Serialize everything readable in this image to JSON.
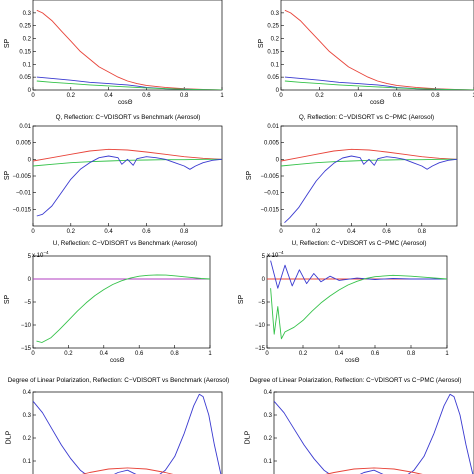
{
  "colors": {
    "red": "#e8443a",
    "green": "#35c24a",
    "blue": "#3a3ad0",
    "purple": "#b03cc0"
  },
  "chart_data": [
    {
      "type": "line",
      "title": "",
      "xlabel": "cosΘ",
      "ylabel": "SP",
      "xlim": [
        0,
        1
      ],
      "ylim": [
        0,
        0.35
      ],
      "xticks": [
        "0",
        "0.2",
        "0.4",
        "0.6",
        "0.8",
        "1"
      ],
      "yticks": [
        "0",
        "0.05",
        "0.1",
        "0.15",
        "0.2",
        "0.25",
        "0.3"
      ],
      "series": [
        {
          "color": "red",
          "x": [
            0.02,
            0.05,
            0.1,
            0.15,
            0.2,
            0.25,
            0.3,
            0.35,
            0.4,
            0.45,
            0.5,
            0.55,
            0.6,
            0.7,
            0.8,
            0.9,
            1.0
          ],
          "y": [
            0.31,
            0.3,
            0.27,
            0.23,
            0.19,
            0.15,
            0.12,
            0.09,
            0.07,
            0.05,
            0.035,
            0.025,
            0.018,
            0.01,
            0.005,
            0.002,
            0.0
          ]
        },
        {
          "color": "blue",
          "x": [
            0.02,
            0.1,
            0.2,
            0.3,
            0.4,
            0.45,
            0.5,
            0.55,
            0.6,
            0.7,
            0.8,
            0.9,
            1.0
          ],
          "y": [
            0.05,
            0.045,
            0.038,
            0.03,
            0.025,
            0.022,
            0.02,
            0.015,
            0.01,
            0.005,
            0.003,
            0.001,
            0.0
          ]
        },
        {
          "color": "green",
          "x": [
            0.02,
            0.1,
            0.2,
            0.3,
            0.4,
            0.5,
            0.6,
            0.7,
            0.8,
            0.9,
            1.0
          ],
          "y": [
            0.035,
            0.03,
            0.025,
            0.02,
            0.016,
            0.012,
            0.008,
            0.005,
            0.003,
            0.001,
            0.0
          ]
        }
      ]
    },
    {
      "type": "line",
      "title": "",
      "xlabel": "cosΘ",
      "ylabel": "SP",
      "xlim": [
        0,
        1
      ],
      "ylim": [
        0,
        0.35
      ],
      "xticks": [
        "0",
        "0.2",
        "0.4",
        "0.6",
        "0.8",
        "1"
      ],
      "yticks": [
        "0",
        "0.05",
        "0.1",
        "0.15",
        "0.2",
        "0.25",
        "0.3"
      ],
      "series": [
        {
          "color": "red",
          "x": [
            0.02,
            0.05,
            0.1,
            0.15,
            0.2,
            0.25,
            0.3,
            0.35,
            0.4,
            0.45,
            0.5,
            0.55,
            0.6,
            0.7,
            0.8,
            0.9,
            1.0
          ],
          "y": [
            0.31,
            0.3,
            0.27,
            0.23,
            0.19,
            0.15,
            0.12,
            0.09,
            0.07,
            0.05,
            0.035,
            0.025,
            0.018,
            0.01,
            0.005,
            0.002,
            0.0
          ]
        },
        {
          "color": "blue",
          "x": [
            0.02,
            0.1,
            0.2,
            0.3,
            0.4,
            0.45,
            0.5,
            0.55,
            0.6,
            0.7,
            0.8,
            0.9,
            1.0
          ],
          "y": [
            0.05,
            0.045,
            0.038,
            0.03,
            0.025,
            0.022,
            0.02,
            0.015,
            0.01,
            0.005,
            0.003,
            0.001,
            0.0
          ]
        },
        {
          "color": "green",
          "x": [
            0.02,
            0.1,
            0.2,
            0.3,
            0.4,
            0.5,
            0.6,
            0.7,
            0.8,
            0.9,
            1.0
          ],
          "y": [
            0.035,
            0.03,
            0.025,
            0.02,
            0.016,
            0.012,
            0.008,
            0.005,
            0.003,
            0.001,
            0.0
          ]
        }
      ]
    },
    {
      "type": "line",
      "title": "Q, Reflection: C−VDISORT vs Benchmark (Aerosol)",
      "xlabel": "",
      "ylabel": "SP",
      "xlim": [
        0,
        1
      ],
      "ylim": [
        -0.02,
        0.01
      ],
      "xticks": [
        "0",
        "0.2",
        "0.4",
        "0.6",
        "0.8"
      ],
      "yticks": [
        "0.01",
        "0.005",
        "0",
        "−0.005",
        "−0.01",
        "−0.015"
      ],
      "series": [
        {
          "color": "red",
          "x": [
            0.0,
            0.1,
            0.2,
            0.3,
            0.4,
            0.5,
            0.6,
            0.7,
            0.8,
            0.9,
            1.0
          ],
          "y": [
            -0.0005,
            0.0005,
            0.0015,
            0.0025,
            0.003,
            0.0028,
            0.0022,
            0.0015,
            0.0008,
            0.0003,
            0.0
          ]
        },
        {
          "color": "green",
          "x": [
            0.0,
            0.1,
            0.2,
            0.3,
            0.4,
            0.5,
            0.6,
            0.7,
            0.8,
            0.9,
            1.0
          ],
          "y": [
            -0.002,
            -0.0015,
            -0.001,
            -0.0007,
            -0.0005,
            -0.0003,
            -0.0002,
            -0.0001,
            -0.0001,
            0.0,
            0.0
          ]
        },
        {
          "color": "blue",
          "x": [
            0.02,
            0.05,
            0.1,
            0.15,
            0.2,
            0.25,
            0.3,
            0.35,
            0.4,
            0.45,
            0.47,
            0.5,
            0.53,
            0.55,
            0.6,
            0.65,
            0.7,
            0.75,
            0.8,
            0.83,
            0.86,
            0.9,
            0.95,
            1.0
          ],
          "y": [
            -0.017,
            -0.0165,
            -0.014,
            -0.01,
            -0.006,
            -0.003,
            -0.001,
            0.0005,
            0.001,
            0.0005,
            -0.0015,
            0.0,
            -0.0018,
            0.0002,
            0.0008,
            0.0005,
            0.0,
            -0.001,
            -0.002,
            -0.003,
            -0.002,
            -0.001,
            -0.0003,
            0.0
          ]
        }
      ]
    },
    {
      "type": "line",
      "title": "Q, Reflection: C−VDISORT vs C−PMC (Aerosol)",
      "xlabel": "",
      "ylabel": "SP",
      "xlim": [
        0,
        1
      ],
      "ylim": [
        -0.02,
        0.01
      ],
      "xticks": [
        "0",
        "0.2",
        "0.4",
        "0.6",
        "0.8"
      ],
      "yticks": [
        "0.01",
        "0.005",
        "0",
        "−0.005",
        "−0.01",
        "−0.015"
      ],
      "series": [
        {
          "color": "red",
          "x": [
            0.0,
            0.1,
            0.2,
            0.3,
            0.4,
            0.5,
            0.6,
            0.7,
            0.8,
            0.9,
            1.0
          ],
          "y": [
            -0.0005,
            0.0005,
            0.0015,
            0.0025,
            0.003,
            0.0028,
            0.0022,
            0.0015,
            0.0008,
            0.0003,
            0.0
          ]
        },
        {
          "color": "green",
          "x": [
            0.0,
            0.1,
            0.2,
            0.3,
            0.4,
            0.5,
            0.6,
            0.7,
            0.8,
            0.9,
            1.0
          ],
          "y": [
            -0.002,
            -0.0015,
            -0.001,
            -0.0007,
            -0.0005,
            -0.0003,
            -0.0002,
            -0.0001,
            -0.0001,
            0.0,
            0.0
          ]
        },
        {
          "color": "blue",
          "x": [
            0.02,
            0.05,
            0.1,
            0.15,
            0.2,
            0.25,
            0.3,
            0.35,
            0.4,
            0.45,
            0.47,
            0.5,
            0.53,
            0.55,
            0.6,
            0.65,
            0.7,
            0.75,
            0.8,
            0.83,
            0.86,
            0.9,
            0.95,
            1.0
          ],
          "y": [
            -0.019,
            -0.0175,
            -0.0145,
            -0.0105,
            -0.0065,
            -0.0035,
            -0.0012,
            0.0004,
            0.001,
            0.0005,
            -0.0015,
            0.0,
            -0.0018,
            0.0002,
            0.0008,
            0.0005,
            0.0,
            -0.001,
            -0.002,
            -0.003,
            -0.002,
            -0.001,
            -0.0003,
            0.0
          ]
        }
      ]
    },
    {
      "type": "line",
      "title": "U, Reflection: C−VDISORT vs Benchmark (Aerosol)",
      "xlabel": "cosΘ",
      "ylabel": "SP",
      "multiplier": "x 10",
      "multiplier_exp": "−4",
      "xlim": [
        0,
        1
      ],
      "ylim": [
        -15,
        5
      ],
      "xticks": [
        "0",
        "0.2",
        "0.4",
        "0.6",
        "0.8",
        "1"
      ],
      "yticks": [
        "5",
        "0",
        "−5",
        "−10",
        "−15"
      ],
      "series": [
        {
          "color": "purple",
          "x": [
            0.0,
            1.0
          ],
          "y": [
            0.0,
            0.0
          ]
        },
        {
          "color": "green",
          "x": [
            0.02,
            0.05,
            0.1,
            0.15,
            0.2,
            0.25,
            0.3,
            0.35,
            0.4,
            0.45,
            0.5,
            0.55,
            0.6,
            0.65,
            0.7,
            0.75,
            0.8,
            0.85,
            0.9,
            0.95,
            1.0
          ],
          "y": [
            -13.5,
            -13.8,
            -12.8,
            -11.0,
            -9.0,
            -7.0,
            -5.2,
            -3.6,
            -2.3,
            -1.2,
            -0.4,
            0.2,
            0.6,
            0.8,
            0.9,
            0.85,
            0.7,
            0.5,
            0.3,
            0.1,
            0.0
          ]
        }
      ]
    },
    {
      "type": "line",
      "title": "U, Reflection: C−VDISORT vs C−PMC (Aerosol)",
      "xlabel": "cosΘ",
      "ylabel": "SP",
      "multiplier": "x 10",
      "multiplier_exp": "−4",
      "xlim": [
        0,
        1
      ],
      "ylim": [
        -15,
        5
      ],
      "xticks": [
        "0",
        "0.2",
        "0.4",
        "0.6",
        "0.8",
        "1"
      ],
      "yticks": [
        "5",
        "0",
        "−5",
        "−10",
        "−15"
      ],
      "series": [
        {
          "color": "red",
          "x": [
            0.0,
            1.0
          ],
          "y": [
            0.0,
            0.0
          ]
        },
        {
          "color": "blue",
          "x": [
            0.02,
            0.06,
            0.1,
            0.14,
            0.18,
            0.22,
            0.26,
            0.3,
            0.35,
            0.4,
            0.5,
            0.6,
            0.7,
            0.8,
            0.9,
            1.0
          ],
          "y": [
            4.0,
            -2.0,
            3.0,
            -1.5,
            2.0,
            -1.0,
            1.2,
            -0.6,
            0.6,
            -0.3,
            0.2,
            -0.1,
            0.1,
            0.0,
            0.0,
            0.0
          ]
        },
        {
          "color": "green",
          "x": [
            0.02,
            0.04,
            0.06,
            0.08,
            0.1,
            0.15,
            0.2,
            0.25,
            0.3,
            0.35,
            0.4,
            0.45,
            0.5,
            0.55,
            0.6,
            0.7,
            0.8,
            0.9,
            1.0
          ],
          "y": [
            -2.0,
            -12.0,
            -6.0,
            -13.0,
            -11.5,
            -10.5,
            -9.0,
            -7.0,
            -5.2,
            -3.7,
            -2.4,
            -1.3,
            -0.5,
            0.1,
            0.5,
            0.8,
            0.6,
            0.3,
            0.0
          ]
        }
      ]
    },
    {
      "type": "line",
      "title": "Degree of Linear Polarization, Reflection: C−VDISORT vs Benchmark (Aerosol)",
      "xlabel": "",
      "ylabel": "DLP",
      "xlim": [
        0,
        1
      ],
      "ylim": [
        0,
        0.4
      ],
      "xticks": [],
      "yticks": [
        "0.4",
        "0.3",
        "0.2",
        "0.1"
      ],
      "series": [
        {
          "color": "blue",
          "x": [
            0.0,
            0.05,
            0.1,
            0.15,
            0.2,
            0.25,
            0.3,
            0.35,
            0.4,
            0.45,
            0.5,
            0.55,
            0.6,
            0.65,
            0.7,
            0.75,
            0.8,
            0.85,
            0.88,
            0.9,
            0.93,
            0.96,
            1.0
          ],
          "y": [
            0.36,
            0.31,
            0.24,
            0.17,
            0.11,
            0.06,
            0.03,
            0.015,
            0.03,
            0.05,
            0.06,
            0.04,
            0.02,
            0.03,
            0.06,
            0.12,
            0.22,
            0.34,
            0.39,
            0.38,
            0.3,
            0.17,
            0.02
          ]
        },
        {
          "color": "red",
          "x": [
            0.0,
            0.1,
            0.2,
            0.3,
            0.4,
            0.5,
            0.6,
            0.7,
            0.8,
            0.9,
            1.0
          ],
          "y": [
            0.0,
            0.01,
            0.03,
            0.05,
            0.065,
            0.07,
            0.065,
            0.05,
            0.03,
            0.01,
            0.0
          ]
        },
        {
          "color": "green",
          "x": [
            0.0,
            0.1,
            0.2,
            0.3,
            0.4,
            0.5,
            0.6,
            0.7,
            0.8,
            0.9,
            1.0
          ],
          "y": [
            0.03,
            0.025,
            0.02,
            0.015,
            0.012,
            0.01,
            0.008,
            0.006,
            0.005,
            0.002,
            0.0
          ]
        }
      ]
    },
    {
      "type": "line",
      "title": "Degree of Linear Polarization, Reflection: C−VDISORT vs C−PMC (Aerosol)",
      "xlabel": "",
      "ylabel": "DLP",
      "xlim": [
        0,
        1
      ],
      "ylim": [
        0,
        0.4
      ],
      "xticks": [],
      "yticks": [
        "0.4",
        "0.3",
        "0.2",
        "0.1"
      ],
      "series": [
        {
          "color": "blue",
          "x": [
            0.0,
            0.05,
            0.1,
            0.15,
            0.2,
            0.25,
            0.3,
            0.35,
            0.4,
            0.45,
            0.5,
            0.55,
            0.6,
            0.65,
            0.7,
            0.75,
            0.8,
            0.85,
            0.88,
            0.9,
            0.93,
            0.96,
            1.0
          ],
          "y": [
            0.36,
            0.31,
            0.24,
            0.17,
            0.11,
            0.06,
            0.03,
            0.015,
            0.03,
            0.05,
            0.06,
            0.04,
            0.02,
            0.03,
            0.06,
            0.12,
            0.22,
            0.34,
            0.39,
            0.38,
            0.3,
            0.17,
            0.02
          ]
        },
        {
          "color": "red",
          "x": [
            0.0,
            0.1,
            0.2,
            0.3,
            0.4,
            0.5,
            0.6,
            0.7,
            0.8,
            0.9,
            1.0
          ],
          "y": [
            0.0,
            0.01,
            0.03,
            0.05,
            0.065,
            0.07,
            0.065,
            0.05,
            0.03,
            0.01,
            0.0
          ]
        },
        {
          "color": "green",
          "x": [
            0.0,
            0.1,
            0.2,
            0.3,
            0.4,
            0.5,
            0.6,
            0.7,
            0.8,
            0.9,
            1.0
          ],
          "y": [
            0.03,
            0.025,
            0.02,
            0.015,
            0.012,
            0.01,
            0.008,
            0.006,
            0.005,
            0.002,
            0.0
          ]
        }
      ]
    }
  ]
}
